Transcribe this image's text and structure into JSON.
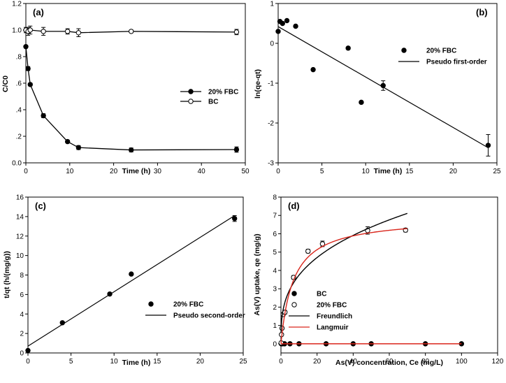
{
  "chart_data": [
    {
      "id": "a",
      "type": "line",
      "panel_label": "(a)",
      "xlabel": "Time (h)",
      "ylabel": "C/C0",
      "xlim": [
        0,
        50
      ],
      "ylim": [
        0,
        1.2
      ],
      "xticks": [
        0,
        10,
        20,
        30,
        40,
        50
      ],
      "xtick_labels": [
        "0",
        "10",
        "20",
        "30",
        "40",
        "50"
      ],
      "yticks": [
        0,
        0.2,
        0.4,
        0.6,
        0.8,
        1.0,
        1.2
      ],
      "ytick_labels": [
        "0.0",
        ".2",
        ".4",
        ".6",
        ".8",
        "1.0",
        "1.2"
      ],
      "legend_position": "middle-right",
      "series": [
        {
          "name": "20% FBC",
          "marker": "filled-circle",
          "line": "connected",
          "x": [
            0,
            0.5,
            1,
            4,
            9.5,
            12,
            24,
            48
          ],
          "y": [
            0.875,
            0.71,
            0.59,
            0.355,
            0.16,
            0.115,
            0.097,
            0.1
          ],
          "err": [
            0.01,
            0.015,
            0.01,
            0.015,
            0.01,
            0.015,
            0.015,
            0.02
          ]
        },
        {
          "name": "BC",
          "marker": "open-circle",
          "line": "connected",
          "x": [
            0,
            0.5,
            1,
            4,
            9.5,
            12,
            24,
            48
          ],
          "y": [
            1.0,
            0.99,
            1.0,
            0.99,
            0.99,
            0.98,
            0.99,
            0.985
          ],
          "err": [
            0.02,
            0.03,
            0.03,
            0.03,
            0.02,
            0.03,
            0.01,
            0.02
          ]
        }
      ]
    },
    {
      "id": "b",
      "type": "scatter",
      "panel_label": "(b)",
      "xlabel": "Time (h)",
      "ylabel": "ln(qe-qt)",
      "xlim": [
        0,
        25
      ],
      "ylim": [
        -3,
        1
      ],
      "xticks": [
        0,
        5,
        10,
        15,
        20,
        25
      ],
      "xtick_labels": [
        "0",
        "5",
        "10",
        "15",
        "20",
        "25"
      ],
      "yticks": [
        -3,
        -2,
        -1,
        0,
        1
      ],
      "ytick_labels": [
        "-3",
        "-2",
        "-1",
        "0",
        "1"
      ],
      "legend_position": "middle-right",
      "series": [
        {
          "name": "20% FBC",
          "marker": "filled-circle",
          "x": [
            0,
            0.2,
            0.5,
            1,
            2,
            4,
            8,
            9.5,
            12,
            24
          ],
          "y": [
            0.3,
            0.55,
            0.5,
            0.57,
            0.43,
            -0.66,
            -0.12,
            -1.48,
            -1.06,
            -2.56
          ],
          "err": [
            0,
            0,
            0,
            0,
            0.03,
            0,
            0.03,
            0.03,
            0.12,
            0.27
          ]
        },
        {
          "name": "Pseudo first-order",
          "marker": "none",
          "line": "fit",
          "x": [
            0,
            24
          ],
          "y": [
            0.42,
            -2.62
          ]
        }
      ]
    },
    {
      "id": "c",
      "type": "scatter",
      "panel_label": "(c)",
      "xlabel": "Time (h)",
      "ylabel": "t/qt (h/(mg/g))",
      "xlim": [
        0,
        25
      ],
      "ylim": [
        0,
        16
      ],
      "xticks": [
        0,
        5,
        10,
        15,
        20,
        25
      ],
      "xtick_labels": [
        "0",
        "5",
        "10",
        "15",
        "20",
        "25"
      ],
      "yticks": [
        0,
        2,
        4,
        6,
        8,
        10,
        12,
        14,
        16
      ],
      "ytick_labels": [
        "0",
        "2",
        "4",
        "6",
        "8",
        "10",
        "12",
        "14",
        "16"
      ],
      "legend_position": "lower-right",
      "series": [
        {
          "name": "20% FBC",
          "marker": "filled-circle",
          "x": [
            0,
            4,
            9.5,
            12,
            24
          ],
          "y": [
            0.25,
            3.1,
            6.05,
            8.1,
            13.8
          ],
          "err": [
            0,
            0,
            0,
            0,
            0.3
          ]
        },
        {
          "name": "Pseudo second-order",
          "marker": "none",
          "line": "fit",
          "x": [
            0,
            24
          ],
          "y": [
            0.7,
            14.1
          ]
        }
      ]
    },
    {
      "id": "d",
      "type": "scatter",
      "panel_label": "(d)",
      "xlabel": "As(V) concentration, Ce (mg/L)",
      "ylabel": "As(V) uptake, qe (mg/g)",
      "xlim": [
        0,
        120
      ],
      "ylim": [
        -0.5,
        8
      ],
      "xticks": [
        0,
        20,
        40,
        60,
        80,
        100,
        120
      ],
      "xtick_labels": [
        "0",
        "20",
        "40",
        "60",
        "80",
        "100",
        "120"
      ],
      "yticks": [
        0,
        1,
        2,
        3,
        4,
        5,
        6,
        7,
        8
      ],
      "ytick_labels": [
        "0",
        "1",
        "2",
        "3",
        "4",
        "5",
        "6",
        "7",
        "8"
      ],
      "legend_position": "lower-right",
      "series": [
        {
          "name": "BC",
          "marker": "filled-circle",
          "x": [
            0.2,
            0.8,
            2,
            5,
            10,
            25,
            40,
            50,
            80,
            100
          ],
          "y": [
            0,
            0,
            0,
            0,
            0,
            0,
            0,
            0,
            0,
            0
          ]
        },
        {
          "name": "20% FBC",
          "marker": "open-circle",
          "x": [
            0.1,
            0.3,
            0.6,
            1.2,
            2.2,
            7,
            15,
            23,
            48,
            69
          ],
          "y": [
            0.05,
            0.5,
            0.85,
            1.6,
            1.72,
            3.62,
            5.05,
            5.45,
            6.18,
            6.2
          ],
          "err": [
            0,
            0,
            0,
            0.1,
            0.1,
            0.1,
            0.1,
            0.15,
            0.2,
            0.1
          ]
        },
        {
          "name": "Freundlich",
          "marker": "none",
          "line": "fit",
          "color": "#000000",
          "model": {
            "Kf": 1.75,
            "n_inv": 0.33
          },
          "x_range": [
            0.05,
            70
          ]
        },
        {
          "name": "Langmuir",
          "marker": "none",
          "line": "fit",
          "color": "#d9261c",
          "model": {
            "Qm": 6.9,
            "K": 0.145
          },
          "x_range": [
            0,
            70
          ],
          "baseline_x_range": [
            0,
            100
          ]
        }
      ]
    }
  ]
}
